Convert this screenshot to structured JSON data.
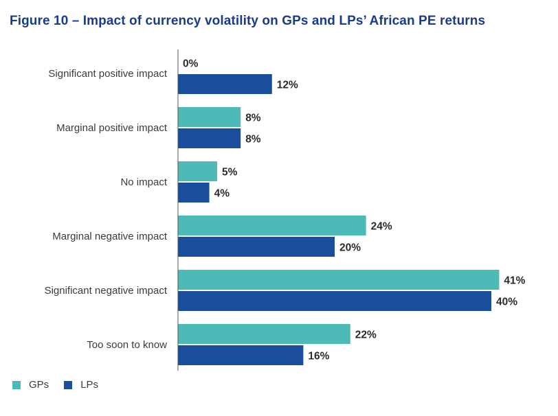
{
  "title": "Figure 10 – Impact of currency volatility on GPs and LPs’ African PE returns",
  "colors": {
    "gps": "#4dbab8",
    "lps": "#1a4e9c",
    "axis": "#555555"
  },
  "legend": [
    {
      "name": "GPs",
      "color_key": "gps"
    },
    {
      "name": "LPs",
      "color_key": "lps"
    }
  ],
  "chart_data": {
    "type": "bar",
    "orientation": "horizontal",
    "title": "Figure 10 – Impact of currency volatility on GPs and LPs’ African PE returns",
    "categories": [
      "Significant positive impact",
      "Marginal positive impact",
      "No impact",
      "Marginal negative impact",
      "Significant negative impact",
      "Too soon to know"
    ],
    "series": [
      {
        "name": "GPs",
        "values": [
          0,
          8,
          5,
          24,
          41,
          22
        ],
        "labels": [
          "0%",
          "8%",
          "5%",
          "24%",
          "41%",
          "22%"
        ]
      },
      {
        "name": "LPs",
        "values": [
          12,
          8,
          4,
          20,
          40,
          16
        ],
        "labels": [
          "12%",
          "8%",
          "4%",
          "20%",
          "40%",
          "16%"
        ]
      }
    ],
    "xlim": [
      0,
      41
    ],
    "unit": "%",
    "legend_position": "bottom-left",
    "grid": false
  }
}
